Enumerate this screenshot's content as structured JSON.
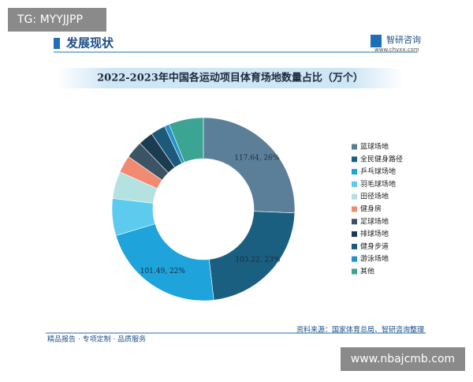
{
  "overlay_tag": "TG: MYYJJPP",
  "header": {
    "title": "发展现状",
    "logo": "智研咨询",
    "logo_url": "www.chyxx.com"
  },
  "footer": {
    "left": "精品报告 · 专项定制 · 品质服务",
    "source": "资料来源：国家体育总局、智研咨询整理"
  },
  "site_tag": "www.nbajcmb.com",
  "chart_data": {
    "type": "donut",
    "title": "2022-2023年中国各运动项目体育场地数量占比（万个）",
    "categories": [
      "篮球场地",
      "全民健身路径",
      "乒乓球场地",
      "羽毛球场地",
      "田径场地",
      "健身房",
      "足球场地",
      "排球场地",
      "健身步道",
      "游泳场地",
      "其他"
    ],
    "values": [
      117.64,
      103.22,
      101.49,
      30,
      22,
      14,
      14,
      12,
      12,
      4,
      28
    ],
    "value_labels": [
      "117.64, 26%",
      "103.22, 23%",
      "101.49, 22%",
      null,
      null,
      null,
      null,
      null,
      null,
      null,
      null
    ],
    "colors": [
      "#5c7f99",
      "#1b5f80",
      "#1ea3db",
      "#5ccbee",
      "#b4e2e0",
      "#f08b72",
      "#3b5364",
      "#1b3b51",
      "#1d5a7a",
      "#2393cb",
      "#3ca493"
    ],
    "legend": "right"
  }
}
